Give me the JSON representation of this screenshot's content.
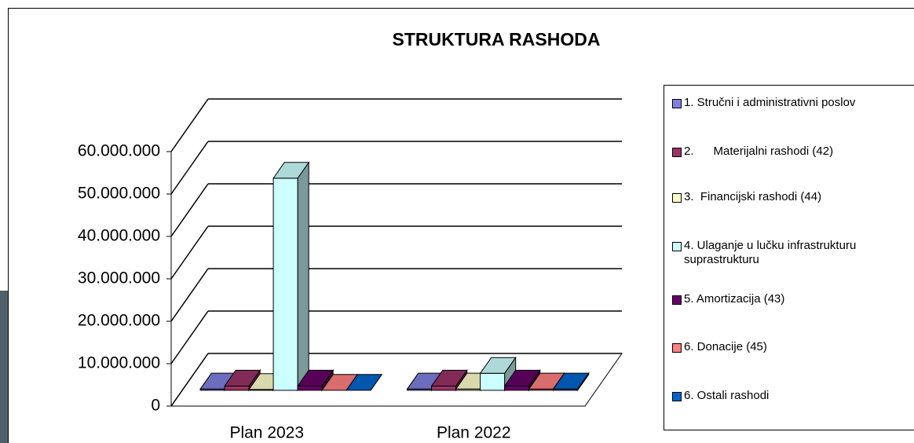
{
  "chart_data": {
    "type": "bar3d",
    "title": "STRUKTURA RASHODA",
    "categories": [
      "Plan 2023",
      "Plan 2022"
    ],
    "series": [
      {
        "name": "1. Stručni i administrativni poslov",
        "color": "#8080e0",
        "values": [
          300000,
          300000
        ]
      },
      {
        "name": "2.      Materijalni rashodi (42)",
        "color": "#993366",
        "values": [
          1000000,
          1000000
        ]
      },
      {
        "name": "3.  Financijski rashodi (44)",
        "color": "#ffffcc",
        "values": [
          200000,
          300000
        ]
      },
      {
        "name": "4. Ulaganje u lučku infrastrukturu suprastrukturu",
        "color": "#ccffff",
        "values": [
          50000000,
          4000000
        ]
      },
      {
        "name": "5. Amortizacija (43)",
        "color": "#660066",
        "values": [
          1000000,
          1000000
        ]
      },
      {
        "name": "6. Donacije (45)",
        "color": "#ff8080",
        "values": [
          0,
          300000
        ]
      },
      {
        "name": "6. Ostali rashodi",
        "color": "#0066cc",
        "values": [
          0,
          300000
        ]
      }
    ],
    "ylim": [
      0,
      60000000
    ],
    "yticks": [
      0,
      {
        "value": 10000000,
        "label": "10.000.000"
      },
      {
        "value": 20000000,
        "label": "20.000.000"
      },
      {
        "value": 30000000,
        "label": "30.000.000"
      },
      {
        "value": 40000000,
        "label": "40.000.000"
      },
      {
        "value": 50000000,
        "label": "50.000.000"
      },
      {
        "value": 60000000,
        "label": "60.000.000"
      }
    ],
    "grid": true
  }
}
